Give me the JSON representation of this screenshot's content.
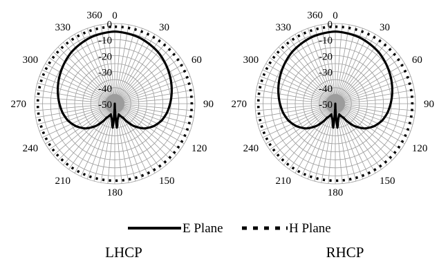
{
  "chart_data": [
    {
      "type": "polar-line",
      "caption": "LHCP",
      "angle_labels": [
        "0",
        "30",
        "60",
        "90",
        "120",
        "150",
        "180",
        "210",
        "240",
        "270",
        "300",
        "330",
        "360"
      ],
      "radial_labels": [
        "0",
        "-10",
        "-20",
        "-30",
        "-40",
        "-50"
      ],
      "rlim": [
        -50,
        0
      ],
      "angle_grid_step_deg": 5,
      "radial_grid_step_db": 5,
      "grid": true,
      "series": [
        {
          "name": "E Plane",
          "style": "solid",
          "angles_deg": [
            0,
            20,
            40,
            60,
            80,
            100,
            110,
            120,
            130,
            140,
            150,
            160,
            170,
            175,
            180,
            185,
            190,
            200,
            210,
            220,
            230,
            240,
            250,
            260,
            280,
            300,
            320,
            340,
            360
          ],
          "values_db": [
            -5,
            -6,
            -8,
            -11,
            -14,
            -17,
            -19,
            -22,
            -26,
            -32,
            -40,
            -43,
            -40,
            -35,
            -55,
            -35,
            -40,
            -43,
            -40,
            -32,
            -26,
            -22,
            -19,
            -17,
            -14,
            -11,
            -8,
            -6,
            -5
          ]
        },
        {
          "name": "H Plane",
          "style": "dotted",
          "angles_deg": [
            0,
            30,
            60,
            90,
            120,
            150,
            180,
            210,
            240,
            270,
            300,
            330,
            360
          ],
          "values_db": [
            -2,
            -2,
            -2,
            -2,
            -2,
            -2,
            -2,
            -2,
            -2,
            -2,
            -2,
            -2,
            -2
          ]
        }
      ]
    },
    {
      "type": "polar-line",
      "caption": "RHCP",
      "angle_labels": [
        "0",
        "30",
        "60",
        "90",
        "120",
        "150",
        "180",
        "210",
        "240",
        "270",
        "300",
        "330",
        "360"
      ],
      "radial_labels": [
        "0",
        "-10",
        "-20",
        "-30",
        "-40",
        "-50"
      ],
      "rlim": [
        -50,
        0
      ],
      "angle_grid_step_deg": 5,
      "radial_grid_step_db": 5,
      "grid": true,
      "series": [
        {
          "name": "E Plane",
          "style": "solid",
          "angles_deg": [
            0,
            20,
            40,
            60,
            80,
            100,
            110,
            120,
            130,
            140,
            150,
            160,
            170,
            175,
            180,
            185,
            190,
            200,
            210,
            220,
            230,
            240,
            250,
            260,
            280,
            300,
            320,
            340,
            360
          ],
          "values_db": [
            -5,
            -6,
            -8,
            -11,
            -14,
            -17,
            -19,
            -22,
            -26,
            -32,
            -40,
            -43,
            -40,
            -35,
            -55,
            -35,
            -40,
            -43,
            -40,
            -32,
            -26,
            -22,
            -19,
            -17,
            -14,
            -11,
            -8,
            -6,
            -5
          ]
        },
        {
          "name": "H Plane",
          "style": "dotted",
          "angles_deg": [
            0,
            30,
            60,
            90,
            120,
            150,
            180,
            210,
            240,
            270,
            300,
            330,
            360
          ],
          "values_db": [
            -2,
            -2,
            -2,
            -2,
            -2,
            -2,
            -2,
            -2,
            -2,
            -2,
            -2,
            -2,
            -2
          ]
        }
      ]
    }
  ],
  "legend": {
    "placement": "bottom-center",
    "items": [
      {
        "label": "E Plane",
        "style": "solid"
      },
      {
        "label": "H Plane",
        "style": "dotted"
      }
    ]
  },
  "colors": {
    "line": "#000000",
    "grid": "#9a9a9a",
    "background": "#ffffff"
  }
}
